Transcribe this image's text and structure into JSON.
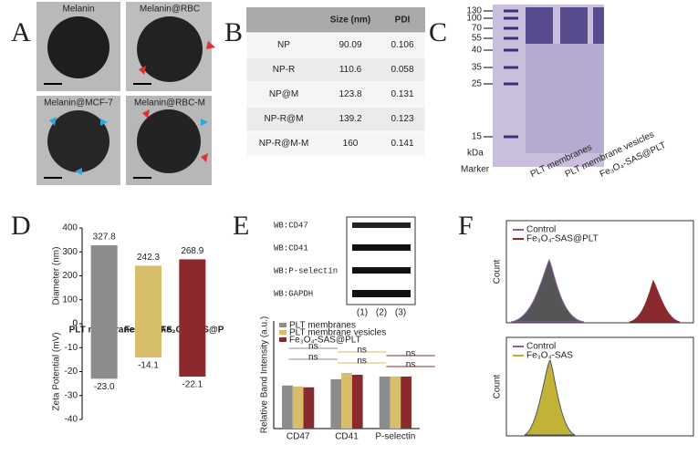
{
  "panel_labels": [
    "A",
    "B",
    "C",
    "D",
    "E",
    "F"
  ],
  "tem": {
    "labels": [
      "Melanin",
      "Melanin@RBC",
      "Melanin@MCF-7",
      "Melanin@RBC-M"
    ]
  },
  "table": {
    "columns": [
      "Size (nm)",
      "PDI"
    ],
    "rows": [
      [
        "NP",
        90.09,
        0.106
      ],
      [
        "NP-R",
        110.6,
        0.058
      ],
      [
        "NP@M",
        123.8,
        0.131
      ],
      [
        "NP-R@M",
        139.2,
        0.123
      ],
      [
        "NP-R@M-M",
        160,
        0.141
      ]
    ]
  },
  "gel": {
    "markers": [
      130,
      100,
      70,
      55,
      40,
      35,
      25,
      15
    ],
    "unit": "kDa",
    "marker_label": "Marker",
    "lanes": [
      "PLT membranes",
      "PLT membrane vesicles",
      "Fe₃O₄-SAS@PLT"
    ]
  },
  "chart_data": [
    {
      "type": "bar",
      "ylabel": "Diameter (nm)",
      "categories": [
        "PLT membranes",
        "Fe₃O₄-SAS",
        "Fe₃O₄-SAS@P"
      ],
      "values": [
        327.8,
        242.3,
        268.9
      ],
      "colors": [
        "#8c8c8c",
        "#d8bd6a",
        "#8a2a2e"
      ],
      "ylim": [
        0,
        400
      ],
      "yticks": [
        0,
        100,
        200,
        300,
        400
      ]
    },
    {
      "type": "bar",
      "ylabel": "Zeta Potential (mV)",
      "values": [
        -23,
        -14.1,
        -22.1
      ],
      "value_labels": [
        "-23.0",
        "-14.1",
        "-22.1"
      ],
      "colors": [
        "#8c8c8c",
        "#d8bd6a",
        "#8a2a2e"
      ],
      "ylim": [
        -40,
        0
      ],
      "yticks": [
        -40,
        -30,
        -20,
        -10,
        0
      ]
    },
    {
      "type": "grouped-bar",
      "ylabel": "Relative Band Intensity (a.u.)",
      "categories": [
        "CD47",
        "CD41",
        "P-selectin"
      ],
      "series": [
        {
          "name": "PLT membranes",
          "color": "#8c8c8c",
          "values": [
            0.48,
            0.55,
            0.58
          ]
        },
        {
          "name": "PLT membrane vesicles",
          "color": "#d8bd6a",
          "values": [
            0.47,
            0.62,
            0.58
          ]
        },
        {
          "name": "Fe₃O₄-SAS@PLT",
          "color": "#8a2a2e",
          "values": [
            0.46,
            0.6,
            0.58
          ]
        }
      ],
      "ylim": [
        0,
        1.2
      ],
      "annotations": [
        "ns",
        "ns",
        "ns",
        "ns",
        "ns",
        "ns"
      ]
    }
  ],
  "blot": {
    "labels": [
      "WB:CD47",
      "WB:CD41",
      "WB:P-selectin",
      "WB:GAPDH"
    ],
    "lanes": [
      "(1)",
      "(2)",
      "(3)"
    ]
  },
  "flow": {
    "ylabel": "Count",
    "top_legend": [
      "Control",
      "Fe₃O₄-SAS@PLT"
    ],
    "bottom_legend": [
      "Control",
      "Fe₃O₄-SAS"
    ]
  }
}
